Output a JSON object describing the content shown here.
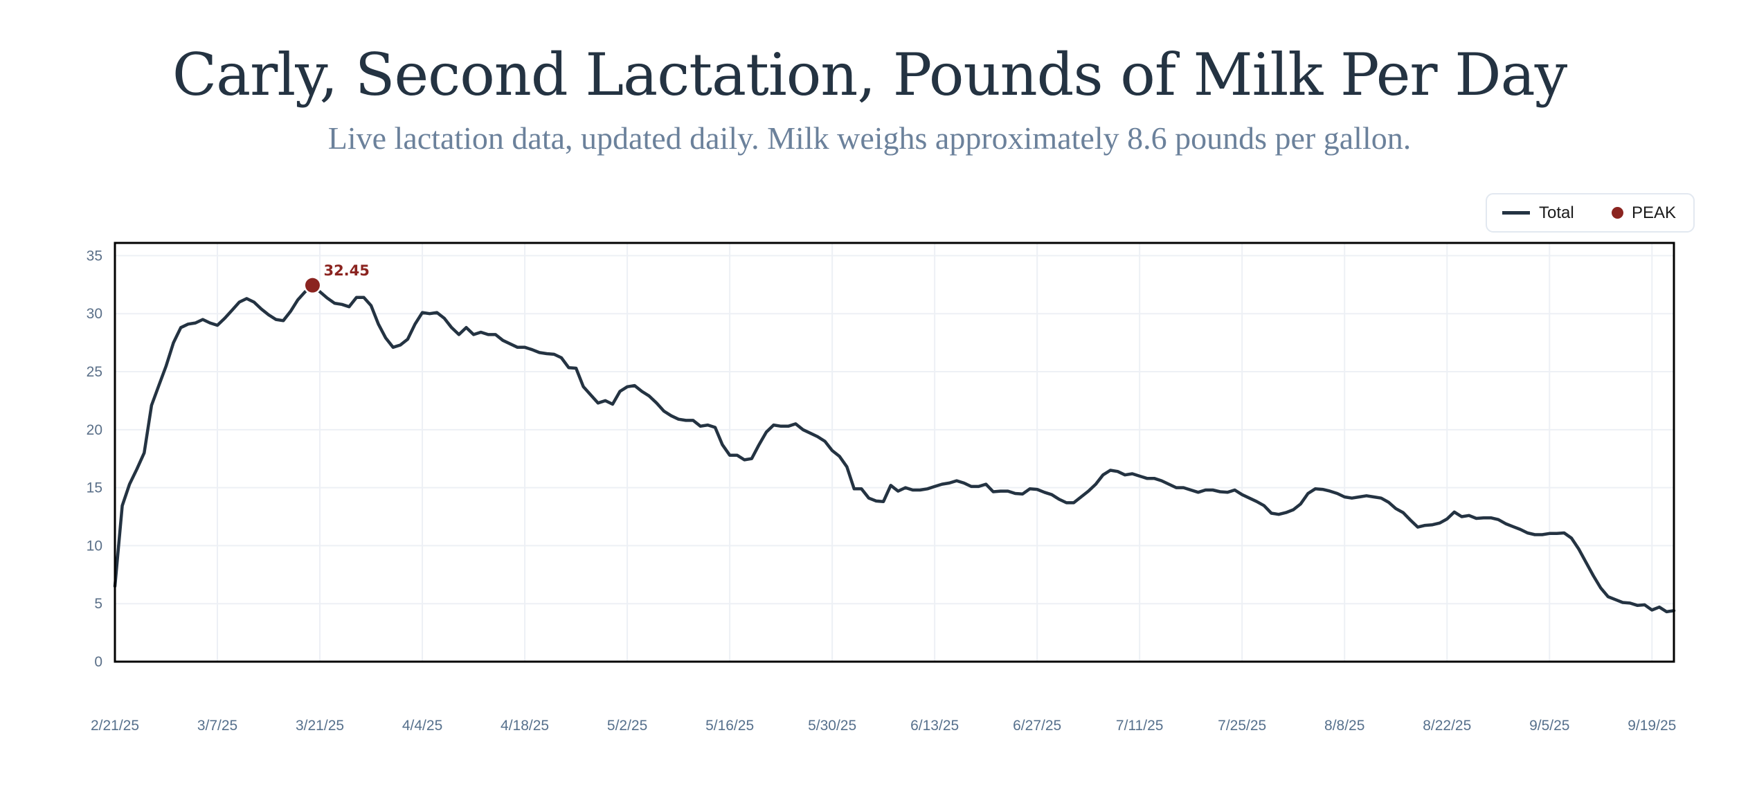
{
  "header": {
    "title": "Carly, Second Lactation, Pounds of Milk Per Day",
    "subtitle": "Live lactation data, updated daily. Milk weighs approximately 8.6 pounds per gallon."
  },
  "legend": {
    "items": [
      {
        "label": "Total",
        "icon": "line-swatch",
        "color": "#243342"
      },
      {
        "label": "PEAK",
        "icon": "dot-marker",
        "color": "#8b2420"
      }
    ]
  },
  "colors": {
    "title": "#243342",
    "subtitle": "#6b819b",
    "line": "#243342",
    "peak": "#8b2420",
    "grid": "#edf0f5",
    "tick_text": "#5a6f88",
    "frame": "#000000"
  },
  "chart_data": {
    "type": "line",
    "title": "Carly, Second Lactation, Pounds of Milk Per Day",
    "subtitle": "Live lactation data, updated daily. Milk weighs approximately 8.6 pounds per gallon.",
    "xlabel": "",
    "ylabel": "",
    "x_type": "date",
    "x_start": "2025-02-21",
    "x_step_days": 1,
    "xlim_days": [
      0,
      213
    ],
    "ylim": [
      0,
      36.1
    ],
    "grid": true,
    "legend_position": "top-right",
    "y_ticks": [
      0,
      5,
      10,
      15,
      20,
      25,
      30,
      35
    ],
    "x_ticks": [
      {
        "day": 0,
        "label": "2/21/25"
      },
      {
        "day": 14,
        "label": "3/7/25"
      },
      {
        "day": 28,
        "label": "3/21/25"
      },
      {
        "day": 42,
        "label": "4/4/25"
      },
      {
        "day": 56,
        "label": "4/18/25"
      },
      {
        "day": 70,
        "label": "5/2/25"
      },
      {
        "day": 84,
        "label": "5/16/25"
      },
      {
        "day": 98,
        "label": "5/30/25"
      },
      {
        "day": 112,
        "label": "6/13/25"
      },
      {
        "day": 126,
        "label": "6/27/25"
      },
      {
        "day": 140,
        "label": "7/11/25"
      },
      {
        "day": 154,
        "label": "7/25/25"
      },
      {
        "day": 168,
        "label": "8/8/25"
      },
      {
        "day": 182,
        "label": "8/22/25"
      },
      {
        "day": 196,
        "label": "9/5/25"
      },
      {
        "day": 210,
        "label": "9/19/25"
      }
    ],
    "series": [
      {
        "name": "Total",
        "values": [
          6.5,
          13.45,
          15.3,
          16.6,
          18.0,
          22.1,
          23.8,
          25.5,
          27.5,
          28.8,
          29.1,
          29.2,
          29.5,
          29.2,
          29.0,
          29.6,
          30.3,
          31.0,
          31.3,
          31.0,
          30.4,
          29.9,
          29.5,
          29.4,
          30.2,
          31.2,
          31.9,
          32.45,
          31.9,
          31.35,
          30.9,
          30.8,
          30.6,
          31.4,
          31.4,
          30.7,
          29.1,
          27.9,
          27.1,
          27.3,
          27.8,
          29.1,
          30.1,
          30.0,
          30.1,
          29.6,
          28.8,
          28.2,
          28.8,
          28.2,
          28.4,
          28.2,
          28.2,
          27.7,
          27.4,
          27.1,
          27.1,
          26.9,
          26.65,
          26.55,
          26.5,
          26.2,
          25.35,
          25.3,
          23.7,
          23.0,
          22.3,
          22.5,
          22.2,
          23.3,
          23.7,
          23.8,
          23.3,
          22.9,
          22.3,
          21.6,
          21.2,
          20.9,
          20.8,
          20.8,
          20.3,
          20.4,
          20.2,
          18.7,
          17.8,
          17.8,
          17.4,
          17.5,
          18.7,
          19.8,
          20.4,
          20.3,
          20.3,
          20.5,
          20.0,
          19.7,
          19.4,
          19.0,
          18.2,
          17.7,
          16.8,
          14.9,
          14.9,
          14.1,
          13.85,
          13.8,
          15.2,
          14.7,
          15.0,
          14.8,
          14.8,
          14.9,
          15.1,
          15.3,
          15.4,
          15.6,
          15.4,
          15.1,
          15.1,
          15.3,
          14.65,
          14.7,
          14.7,
          14.5,
          14.45,
          14.9,
          14.85,
          14.6,
          14.4,
          14.0,
          13.7,
          13.7,
          14.2,
          14.7,
          15.3,
          16.1,
          16.5,
          16.4,
          16.1,
          16.2,
          16.0,
          15.8,
          15.8,
          15.6,
          15.3,
          15.0,
          15.0,
          14.8,
          14.6,
          14.8,
          14.8,
          14.65,
          14.6,
          14.8,
          14.4,
          14.1,
          13.8,
          13.45,
          12.8,
          12.7,
          12.85,
          13.1,
          13.6,
          14.5,
          14.9,
          14.85,
          14.7,
          14.5,
          14.2,
          14.1,
          14.2,
          14.3,
          14.2,
          14.1,
          13.75,
          13.2,
          12.85,
          12.2,
          11.6,
          11.75,
          11.8,
          11.95,
          12.3,
          12.9,
          12.5,
          12.6,
          12.35,
          12.4,
          12.4,
          12.25,
          11.9,
          11.65,
          11.4,
          11.1,
          10.95,
          10.95,
          11.05,
          11.05,
          11.1,
          10.65,
          9.7,
          8.55,
          7.4,
          6.35,
          5.6,
          5.35,
          5.1,
          5.05,
          4.85,
          4.9,
          4.45,
          4.7,
          4.3,
          4.4
        ]
      },
      {
        "name": "PEAK",
        "points": [
          {
            "day": 27,
            "date": "3/20/25",
            "value": 32.45,
            "label": "32.45"
          }
        ]
      }
    ]
  }
}
